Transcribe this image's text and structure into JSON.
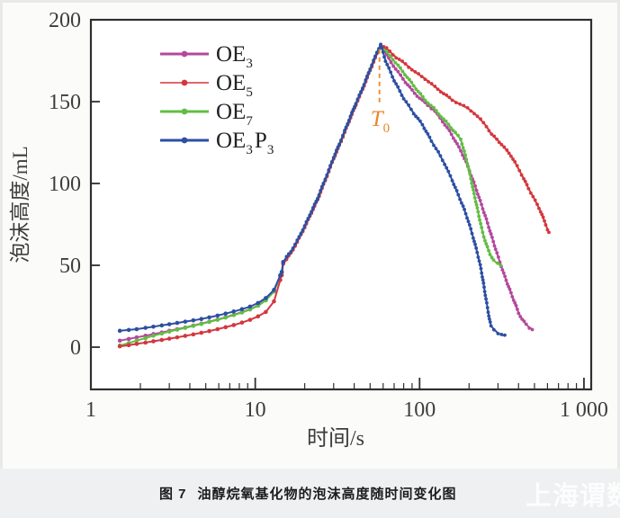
{
  "caption": {
    "figure_label": "图 7",
    "title": "油醇烷氧基化物的泡沫高度随时间变化图"
  },
  "watermark": {
    "text": "上海谓数"
  },
  "colors": {
    "frame": "#2f2f2f",
    "tick_text": "#3d3d3d",
    "annotation_orange": "#e8882d",
    "plot_bg": "#ffffff"
  },
  "chart_data": {
    "type": "line",
    "title": "",
    "xlabel": "时间/s",
    "ylabel": "泡沫高度/mL",
    "x_scale": "log",
    "xlim": [
      1,
      1107
    ],
    "ylim": [
      -25.8,
      200
    ],
    "x_ticks": [
      1,
      10,
      100,
      1000
    ],
    "x_tick_labels": [
      "1",
      "10",
      "100",
      "1 000"
    ],
    "y_ticks": [
      0,
      50,
      100,
      150,
      200
    ],
    "y_tick_labels": [
      "0",
      "50",
      "100",
      "150",
      "200"
    ],
    "grid": false,
    "legend_position": "upper-left-inside",
    "annotation": {
      "label_base": "T",
      "label_sub": "0",
      "t": 57,
      "line_from_h": 182,
      "line_to_h": 149,
      "label_h": 140,
      "color": "#ef9133"
    },
    "series": [
      {
        "name": "OE3",
        "label_parts": [
          {
            "t": "OE",
            "s": "3"
          }
        ],
        "color": "#b3499c",
        "points": [
          [
            1.5,
            4
          ],
          [
            1.7,
            5
          ],
          [
            1.9,
            6
          ],
          [
            2.15,
            7
          ],
          [
            2.4,
            8
          ],
          [
            2.7,
            9
          ],
          [
            3,
            10
          ],
          [
            3.35,
            11
          ],
          [
            3.75,
            12
          ],
          [
            4.2,
            13.2
          ],
          [
            4.7,
            14.4
          ],
          [
            5.25,
            15.6
          ],
          [
            5.9,
            16.9
          ],
          [
            6.6,
            18.3
          ],
          [
            7.4,
            19.8
          ],
          [
            8.3,
            21.4
          ],
          [
            9.3,
            23.2
          ],
          [
            10.4,
            25.5
          ],
          [
            11.6,
            28.8
          ],
          [
            13,
            34
          ],
          [
            14.2,
            43.5
          ],
          [
            14.5,
            45.5
          ],
          [
            14.8,
            52
          ],
          [
            15.5,
            54.5
          ],
          [
            16.5,
            58
          ],
          [
            18,
            64.5
          ],
          [
            20,
            73.5
          ],
          [
            22,
            82.5
          ],
          [
            24,
            90.5
          ],
          [
            26,
            99.5
          ],
          [
            28,
            107.5
          ],
          [
            30,
            115.5
          ],
          [
            32.5,
            123.5
          ],
          [
            35,
            131.5
          ],
          [
            38,
            140.5
          ],
          [
            41,
            148.5
          ],
          [
            44,
            155.5
          ],
          [
            47,
            162.5
          ],
          [
            50,
            169.5
          ],
          [
            52.5,
            174.5
          ],
          [
            55,
            179.5
          ],
          [
            56.5,
            182
          ],
          [
            58,
            185
          ],
          [
            61,
            181
          ],
          [
            67,
            174
          ],
          [
            74,
            168
          ],
          [
            82,
            162
          ],
          [
            90,
            157
          ],
          [
            100,
            152
          ],
          [
            112,
            148
          ],
          [
            124,
            144
          ],
          [
            138,
            138
          ],
          [
            152,
            132
          ],
          [
            165,
            126
          ],
          [
            178,
            120
          ],
          [
            192,
            113
          ],
          [
            206,
            105
          ],
          [
            222,
            96
          ],
          [
            238,
            87
          ],
          [
            255,
            78
          ],
          [
            272,
            69
          ],
          [
            290,
            60
          ],
          [
            308,
            52
          ],
          [
            325,
            45
          ],
          [
            342,
            39
          ],
          [
            360,
            33
          ],
          [
            380,
            27
          ],
          [
            400,
            21
          ],
          [
            420,
            17
          ],
          [
            445,
            14
          ],
          [
            465,
            12
          ],
          [
            485,
            11
          ]
        ]
      },
      {
        "name": "OE7",
        "label_parts": [
          {
            "t": "OE",
            "s": "7"
          }
        ],
        "color": "#62bd45",
        "points": [
          [
            1.5,
            1
          ],
          [
            1.7,
            2.5
          ],
          [
            1.9,
            4
          ],
          [
            2.15,
            5.5
          ],
          [
            2.4,
            7
          ],
          [
            2.7,
            8.3
          ],
          [
            3,
            9.5
          ],
          [
            3.35,
            10.7
          ],
          [
            3.75,
            11.8
          ],
          [
            4.2,
            13
          ],
          [
            4.7,
            14.2
          ],
          [
            5.25,
            15.4
          ],
          [
            5.9,
            16.7
          ],
          [
            6.6,
            18.1
          ],
          [
            7.4,
            19.6
          ],
          [
            8.3,
            21.2
          ],
          [
            9.3,
            23
          ],
          [
            10.4,
            25.3
          ],
          [
            11.6,
            28.6
          ],
          [
            13,
            34
          ],
          [
            14.2,
            43.5
          ],
          [
            14.5,
            45.5
          ],
          [
            14.8,
            51.5
          ],
          [
            15.5,
            54
          ],
          [
            16.5,
            58
          ],
          [
            18,
            64.8
          ],
          [
            20,
            73.8
          ],
          [
            22,
            82.8
          ],
          [
            24,
            90.8
          ],
          [
            26,
            99.8
          ],
          [
            28,
            107.8
          ],
          [
            30,
            115.8
          ],
          [
            32.5,
            123.8
          ],
          [
            35,
            131.8
          ],
          [
            38,
            140.8
          ],
          [
            41,
            148.8
          ],
          [
            44,
            155.8
          ],
          [
            47,
            162.8
          ],
          [
            50,
            169.8
          ],
          [
            52.5,
            174.8
          ],
          [
            55,
            179.8
          ],
          [
            56.5,
            182.2
          ],
          [
            58,
            185
          ],
          [
            60,
            183
          ],
          [
            66,
            178
          ],
          [
            74,
            172
          ],
          [
            84,
            165
          ],
          [
            95,
            158
          ],
          [
            108,
            151
          ],
          [
            122,
            146
          ],
          [
            135,
            141
          ],
          [
            150,
            136
          ],
          [
            165,
            131
          ],
          [
            178,
            127
          ],
          [
            190,
            117
          ],
          [
            200,
            108
          ],
          [
            210,
            98
          ],
          [
            222,
            87
          ],
          [
            232,
            78
          ],
          [
            242,
            70
          ],
          [
            254,
            63
          ],
          [
            268,
            57
          ],
          [
            282,
            53
          ],
          [
            298,
            51
          ],
          [
            312,
            50
          ]
        ]
      },
      {
        "name": "OE5",
        "label_parts": [
          {
            "t": "OE",
            "s": "5"
          }
        ],
        "color": "#d4373e",
        "points": [
          [
            1.5,
            0.5
          ],
          [
            1.7,
            1.2
          ],
          [
            1.9,
            2
          ],
          [
            2.15,
            2.8
          ],
          [
            2.4,
            3.6
          ],
          [
            2.7,
            4.4
          ],
          [
            3,
            5.2
          ],
          [
            3.35,
            6
          ],
          [
            3.75,
            6.9
          ],
          [
            4.2,
            7.8
          ],
          [
            4.7,
            8.8
          ],
          [
            5.25,
            9.8
          ],
          [
            5.9,
            11
          ],
          [
            6.6,
            12.2
          ],
          [
            7.4,
            13.5
          ],
          [
            8.3,
            15
          ],
          [
            9.3,
            16.7
          ],
          [
            10.4,
            18.8
          ],
          [
            11.6,
            21.5
          ],
          [
            13,
            28
          ],
          [
            14.2,
            41
          ],
          [
            14.5,
            44
          ],
          [
            14.8,
            51
          ],
          [
            15.5,
            53.5
          ],
          [
            16.5,
            57.5
          ],
          [
            18,
            64.2
          ],
          [
            20,
            73.2
          ],
          [
            22,
            82.2
          ],
          [
            24,
            90.2
          ],
          [
            26,
            99.2
          ],
          [
            28,
            107.2
          ],
          [
            30,
            115.2
          ],
          [
            32.5,
            123.2
          ],
          [
            35,
            131.2
          ],
          [
            38,
            140.2
          ],
          [
            41,
            148.2
          ],
          [
            44,
            155.2
          ],
          [
            47,
            162.2
          ],
          [
            50,
            169.2
          ],
          [
            52.5,
            174.2
          ],
          [
            55,
            179.2
          ],
          [
            56.5,
            181.8
          ],
          [
            58,
            184.5
          ],
          [
            63,
            182.5
          ],
          [
            72,
            177
          ],
          [
            82,
            173
          ],
          [
            94,
            168
          ],
          [
            108,
            164
          ],
          [
            124,
            159
          ],
          [
            140,
            155
          ],
          [
            158,
            151
          ],
          [
            176,
            148.5
          ],
          [
            196,
            146
          ],
          [
            215,
            143
          ],
          [
            235,
            139
          ],
          [
            255,
            135
          ],
          [
            274,
            130
          ],
          [
            295,
            127
          ],
          [
            315,
            124
          ],
          [
            340,
            120
          ],
          [
            360,
            117
          ],
          [
            380,
            113
          ],
          [
            405,
            108
          ],
          [
            430,
            103
          ],
          [
            460,
            97
          ],
          [
            490,
            92
          ],
          [
            520,
            87
          ],
          [
            545,
            83
          ],
          [
            565,
            79
          ],
          [
            585,
            75
          ],
          [
            600,
            72
          ],
          [
            612,
            70
          ]
        ]
      },
      {
        "name": "OE3P3",
        "label_parts": [
          {
            "t": "OE",
            "s": "3"
          },
          {
            "t": "P",
            "s": "3"
          }
        ],
        "color": "#2d4fa2",
        "points": [
          [
            1.5,
            10
          ],
          [
            1.7,
            10.5
          ],
          [
            1.9,
            11
          ],
          [
            2.15,
            11.8
          ],
          [
            2.4,
            12.5
          ],
          [
            2.7,
            13.3
          ],
          [
            3,
            14
          ],
          [
            3.35,
            14.8
          ],
          [
            3.75,
            15.6
          ],
          [
            4.2,
            16.4
          ],
          [
            4.7,
            17.2
          ],
          [
            5.25,
            18.2
          ],
          [
            5.9,
            19.3
          ],
          [
            6.6,
            20.5
          ],
          [
            7.4,
            21.8
          ],
          [
            8.3,
            23.2
          ],
          [
            9.3,
            24.8
          ],
          [
            10.4,
            27
          ],
          [
            11.6,
            30
          ],
          [
            13,
            35
          ],
          [
            14.2,
            44
          ],
          [
            14.5,
            46
          ],
          [
            14.8,
            52
          ],
          [
            15.5,
            55
          ],
          [
            16.5,
            58.5
          ],
          [
            18,
            65
          ],
          [
            20,
            74
          ],
          [
            22,
            83
          ],
          [
            24,
            91
          ],
          [
            26,
            100
          ],
          [
            28,
            108
          ],
          [
            30,
            116
          ],
          [
            32.5,
            124
          ],
          [
            35,
            132
          ],
          [
            38,
            141
          ],
          [
            41,
            149
          ],
          [
            44,
            156
          ],
          [
            47,
            163
          ],
          [
            50,
            170
          ],
          [
            52.5,
            175
          ],
          [
            55,
            180
          ],
          [
            56.5,
            182.5
          ],
          [
            58,
            185
          ],
          [
            62,
            175
          ],
          [
            70,
            163
          ],
          [
            80,
            152
          ],
          [
            92,
            143
          ],
          [
            104,
            136
          ],
          [
            118,
            126
          ],
          [
            130,
            119
          ],
          [
            142,
            112
          ],
          [
            158,
            102
          ],
          [
            172,
            93
          ],
          [
            184,
            86
          ],
          [
            198,
            77
          ],
          [
            212,
            67
          ],
          [
            224,
            58
          ],
          [
            234,
            50
          ],
          [
            243,
            41
          ],
          [
            251,
            32
          ],
          [
            259,
            24
          ],
          [
            266,
            17
          ],
          [
            272,
            13
          ],
          [
            283,
            11
          ],
          [
            300,
            8.5
          ],
          [
            315,
            7.5
          ],
          [
            330,
            7
          ]
        ]
      }
    ]
  }
}
